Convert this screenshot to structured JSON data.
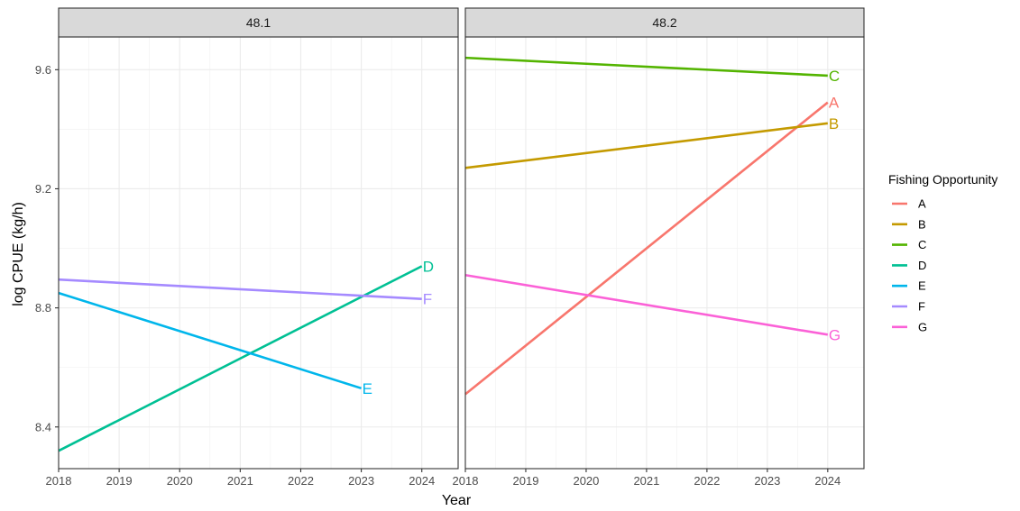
{
  "chart_data": {
    "type": "line",
    "xlabel": "Year",
    "ylabel": "log CPUE (kg/h)",
    "xlim": [
      2018,
      2024.6
    ],
    "ylim": [
      8.26,
      9.71
    ],
    "x_ticks": [
      2018,
      2019,
      2020,
      2021,
      2022,
      2023,
      2024
    ],
    "y_ticks": [
      8.4,
      8.8,
      9.2,
      9.6
    ],
    "grid": true,
    "legend": {
      "title": "Fishing Opportunity",
      "placement": "right",
      "entries": [
        {
          "name": "A",
          "color": "#F8766D"
        },
        {
          "name": "B",
          "color": "#C49A00"
        },
        {
          "name": "C",
          "color": "#53B400"
        },
        {
          "name": "D",
          "color": "#00C094"
        },
        {
          "name": "E",
          "color": "#00B6EB"
        },
        {
          "name": "F",
          "color": "#A58AFF"
        },
        {
          "name": "G",
          "color": "#FB61D7"
        }
      ]
    },
    "panels": [
      {
        "title": "48.1",
        "series": [
          {
            "name": "D",
            "color": "#00C094",
            "x": [
              2018,
              2024
            ],
            "y": [
              8.32,
              8.94
            ]
          },
          {
            "name": "E",
            "color": "#00B6EB",
            "x": [
              2018,
              2023
            ],
            "y": [
              8.85,
              8.53
            ]
          },
          {
            "name": "F",
            "color": "#A58AFF",
            "x": [
              2018,
              2024
            ],
            "y": [
              8.895,
              8.83
            ]
          }
        ]
      },
      {
        "title": "48.2",
        "series": [
          {
            "name": "A",
            "color": "#F8766D",
            "x": [
              2018,
              2024
            ],
            "y": [
              8.51,
              9.49
            ]
          },
          {
            "name": "B",
            "color": "#C49A00",
            "x": [
              2018,
              2024
            ],
            "y": [
              9.27,
              9.42
            ]
          },
          {
            "name": "C",
            "color": "#53B400",
            "x": [
              2018,
              2024
            ],
            "y": [
              9.64,
              9.58
            ]
          },
          {
            "name": "G",
            "color": "#FB61D7",
            "x": [
              2018,
              2024
            ],
            "y": [
              8.91,
              8.71
            ]
          }
        ]
      }
    ]
  }
}
